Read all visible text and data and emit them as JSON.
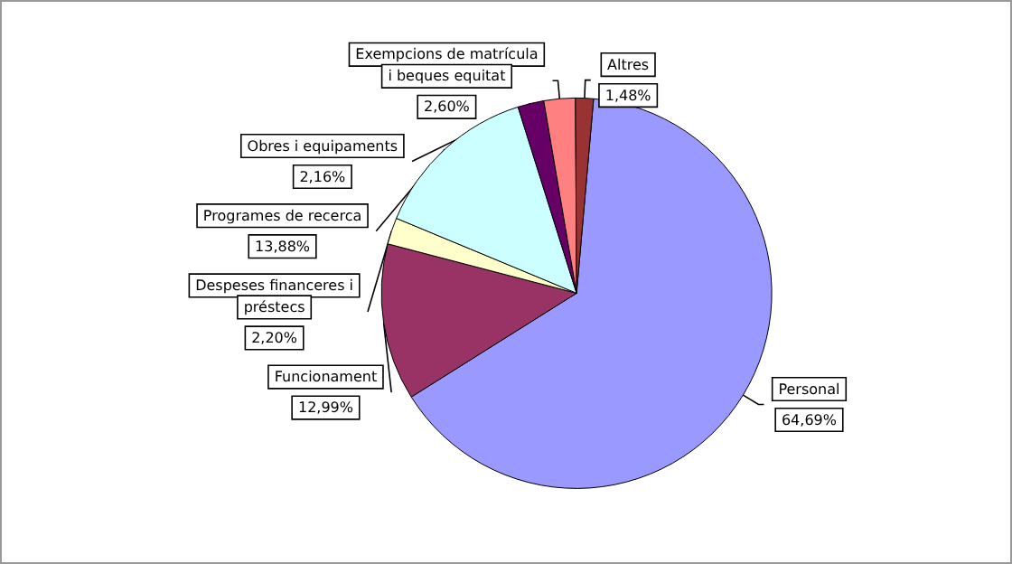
{
  "chart_data": {
    "type": "pie",
    "categories": [
      "Personal",
      "Funcionament",
      "Despeses financeres i\npréstecs",
      "Programes de recerca",
      "Obres i equipaments",
      "Exempcions de matrícula\ni beques equitat",
      "Altres"
    ],
    "values": [
      64.69,
      12.99,
      2.2,
      13.88,
      2.16,
      2.6,
      1.48
    ],
    "value_labels": [
      "64,69%",
      "12,99%",
      "2,20%",
      "13,88%",
      "2,16%",
      "2,60%",
      "1,48%"
    ],
    "colors": [
      "#9999ff",
      "#993366",
      "#ffffcc",
      "#ccffff",
      "#660066",
      "#ff8080",
      "#993333"
    ],
    "legend": false
  }
}
